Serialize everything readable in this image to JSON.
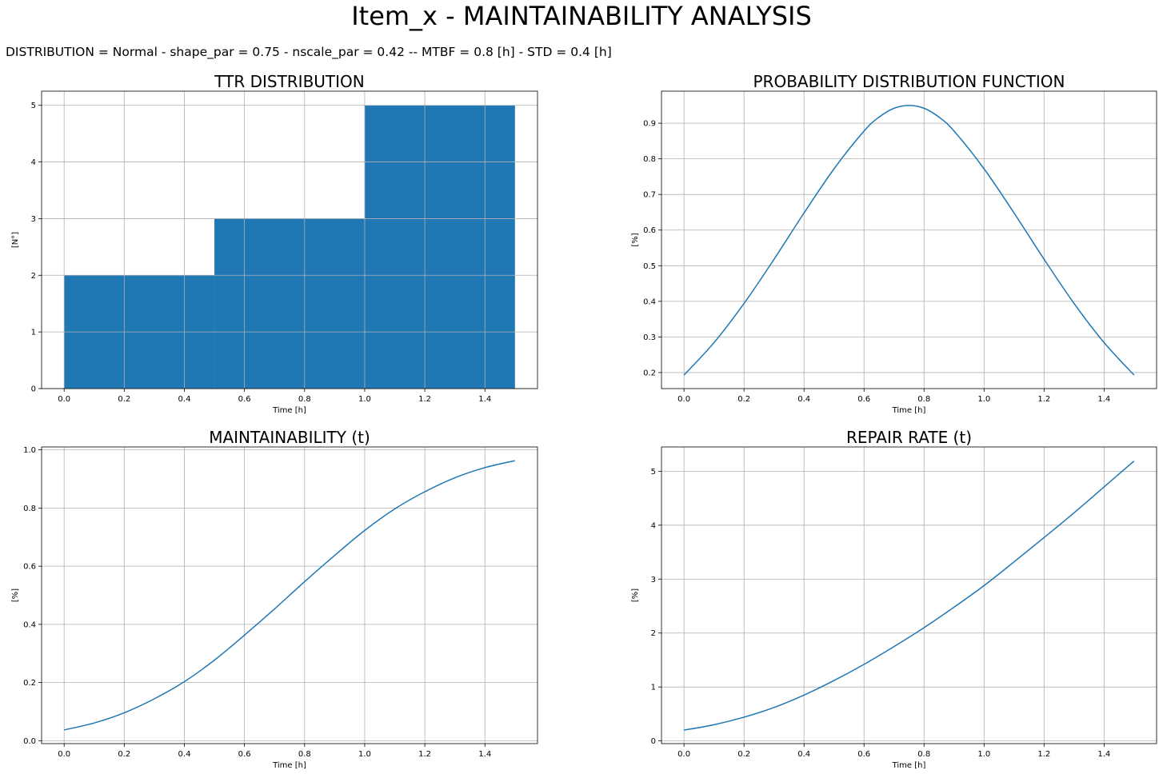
{
  "figure": {
    "title": "Item_x - MAINTAINABILITY ANALYSIS",
    "subtitle": "DISTRIBUTION = Normal - shape_par = 0.75 - nscale_par = 0.42 -- MTBF = 0.8 [h] -  STD = 0.4 [h]"
  },
  "colors": {
    "series": "#1f77b4",
    "grid": "#b0b0b0"
  },
  "chart_data": [
    {
      "id": "ttr",
      "type": "bar",
      "title": "TTR DISTRIBUTION",
      "xlabel": "Time [h]",
      "ylabel": "[N°]",
      "xlim": [
        -0.075,
        1.575
      ],
      "ylim": [
        0,
        5.25
      ],
      "xticks": [
        0.0,
        0.2,
        0.4,
        0.6,
        0.8,
        1.0,
        1.2,
        1.4
      ],
      "yticks": [
        0,
        1,
        2,
        3,
        4,
        5
      ],
      "xtick_labels": [
        "0.0",
        "0.2",
        "0.4",
        "0.6",
        "0.8",
        "1.0",
        "1.2",
        "1.4"
      ],
      "ytick_labels": [
        "0",
        "1",
        "2",
        "3",
        "4",
        "5"
      ],
      "grid": true,
      "bins": [
        {
          "x0": 0.0,
          "x1": 0.5,
          "value": 2
        },
        {
          "x0": 0.5,
          "x1": 1.0,
          "value": 3
        },
        {
          "x0": 1.0,
          "x1": 1.5,
          "value": 5
        }
      ]
    },
    {
      "id": "pdf",
      "type": "line",
      "title": "PROBABILITY DISTRIBUTION FUNCTION",
      "xlabel": "Time [h]",
      "ylabel": "[%]",
      "xlim": [
        -0.075,
        1.575
      ],
      "ylim": [
        0.155,
        0.99
      ],
      "xticks": [
        0.0,
        0.2,
        0.4,
        0.6,
        0.8,
        1.0,
        1.2,
        1.4
      ],
      "yticks": [
        0.2,
        0.3,
        0.4,
        0.5,
        0.6,
        0.7,
        0.8,
        0.9
      ],
      "xtick_labels": [
        "0.0",
        "0.2",
        "0.4",
        "0.6",
        "0.8",
        "1.0",
        "1.2",
        "1.4"
      ],
      "ytick_labels": [
        "0.2",
        "0.3",
        "0.4",
        "0.5",
        "0.6",
        "0.7",
        "0.8",
        "0.9"
      ],
      "grid": true,
      "x": [
        0.0,
        0.1,
        0.2,
        0.3,
        0.4,
        0.5,
        0.6,
        0.65,
        0.7,
        0.75,
        0.8,
        0.85,
        0.9,
        1.0,
        1.1,
        1.2,
        1.3,
        1.4,
        1.5
      ],
      "y": [
        0.193,
        0.284,
        0.394,
        0.518,
        0.648,
        0.772,
        0.878,
        0.917,
        0.942,
        0.95,
        0.942,
        0.917,
        0.878,
        0.772,
        0.648,
        0.518,
        0.394,
        0.284,
        0.193
      ]
    },
    {
      "id": "maint",
      "type": "line",
      "title": "MAINTAINABILITY (t)",
      "xlabel": "Time [h]",
      "ylabel": "[%]",
      "xlim": [
        -0.075,
        1.575
      ],
      "ylim": [
        -0.01,
        1.01
      ],
      "xticks": [
        0.0,
        0.2,
        0.4,
        0.6,
        0.8,
        1.0,
        1.2,
        1.4
      ],
      "yticks": [
        0.0,
        0.2,
        0.4,
        0.6,
        0.8,
        1.0
      ],
      "xtick_labels": [
        "0.0",
        "0.2",
        "0.4",
        "0.6",
        "0.8",
        "1.0",
        "1.2",
        "1.4"
      ],
      "ytick_labels": [
        "0.0",
        "0.2",
        "0.4",
        "0.6",
        "0.8",
        "1.0"
      ],
      "grid": true,
      "x": [
        0.0,
        0.1,
        0.2,
        0.3,
        0.4,
        0.5,
        0.6,
        0.7,
        0.8,
        0.9,
        1.0,
        1.1,
        1.2,
        1.3,
        1.4,
        1.5
      ],
      "y": [
        0.037,
        0.061,
        0.096,
        0.144,
        0.203,
        0.277,
        0.363,
        0.453,
        0.547,
        0.637,
        0.723,
        0.797,
        0.856,
        0.904,
        0.939,
        0.963
      ]
    },
    {
      "id": "repair",
      "type": "line",
      "title": "REPAIR RATE (t)",
      "xlabel": "Time [h]",
      "ylabel": "[%]",
      "xlim": [
        -0.075,
        1.575
      ],
      "ylim": [
        -0.05,
        5.45
      ],
      "xticks": [
        0.0,
        0.2,
        0.4,
        0.6,
        0.8,
        1.0,
        1.2,
        1.4
      ],
      "yticks": [
        0,
        1,
        2,
        3,
        4,
        5
      ],
      "xtick_labels": [
        "0.0",
        "0.2",
        "0.4",
        "0.6",
        "0.8",
        "1.0",
        "1.2",
        "1.4"
      ],
      "ytick_labels": [
        "0",
        "1",
        "2",
        "3",
        "4",
        "5"
      ],
      "grid": true,
      "x": [
        0.0,
        0.1,
        0.2,
        0.3,
        0.4,
        0.5,
        0.6,
        0.7,
        0.8,
        0.9,
        1.0,
        1.1,
        1.2,
        1.3,
        1.4,
        1.5
      ],
      "y": [
        0.2,
        0.3,
        0.44,
        0.62,
        0.85,
        1.12,
        1.42,
        1.75,
        2.1,
        2.48,
        2.88,
        3.32,
        3.77,
        4.23,
        4.71,
        5.19
      ]
    }
  ]
}
